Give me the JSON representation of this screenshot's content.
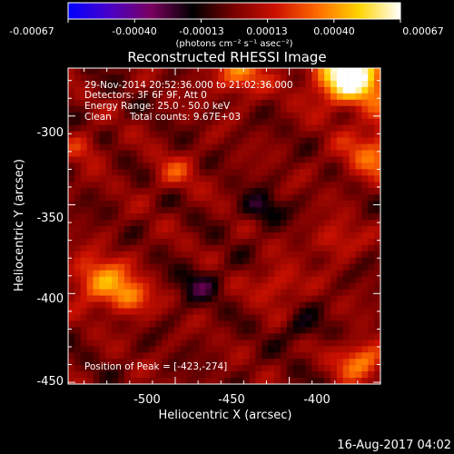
{
  "colorbar": {
    "ticks": [
      "-0.00067",
      "-0.00040",
      "-0.00013",
      "0.00013",
      "0.00040",
      "0.00067"
    ],
    "unit": "(photons cm⁻² s⁻¹ asec⁻²)",
    "stops": [
      "#0000ff",
      "#4a00c8",
      "#7a0060",
      "#000000",
      "#7a0000",
      "#cc1100",
      "#ff6a00",
      "#ffd400",
      "#ffffff"
    ]
  },
  "chart_data": {
    "type": "heatmap",
    "title": "Reconstructed RHESSI Image",
    "xlabel": "Heliocentric X (arcsec)",
    "ylabel": "Heliocentric Y (arcsec)",
    "xlim": [
      -547,
      -410
    ],
    "ylim": [
      -451,
      -273
    ],
    "x_ticks": [
      -500,
      -450,
      -400
    ],
    "y_ticks": [
      -300,
      -350,
      -400,
      -450
    ],
    "value_range": [
      -0.00067,
      0.00067
    ],
    "peak": [
      -423,
      -274
    ],
    "annotations": {
      "time": "29-Nov-2014 20:52:36.000 to 21:02:36.000",
      "detectors": "Detectors: 3F 6F 9F, Att 0",
      "energy": "Energy Range: 25.0 - 50.0 keV",
      "method": "Clean",
      "counts": "Total counts: 9.67E+03",
      "peak_label": "Position of Peak = [-423,-274]"
    }
  },
  "footer": {
    "date": "16-Aug-2017 04:02"
  }
}
